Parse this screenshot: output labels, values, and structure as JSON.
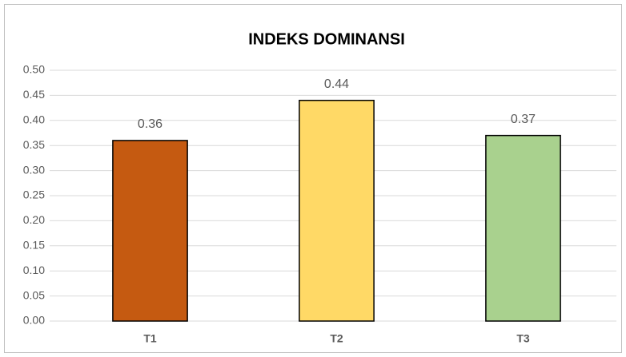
{
  "chart_data": {
    "type": "bar",
    "title": "INDEKS DOMINANSI",
    "categories": [
      "T1",
      "T2",
      "T3"
    ],
    "values": [
      0.36,
      0.44,
      0.37
    ],
    "colors": [
      "#c55a11",
      "#ffd966",
      "#a9d18e"
    ],
    "ylim": [
      0,
      0.5
    ],
    "yticks": [
      {
        "value": 0,
        "label": "0.00"
      },
      0.05,
      {
        "value": 0.1,
        "label": "0.10"
      },
      0.15,
      {
        "value": 0.2,
        "label": "0.20"
      },
      0.25,
      {
        "value": 0.3,
        "label": "0.30"
      },
      0.35,
      {
        "value": 0.4,
        "label": "0.40"
      },
      0.45,
      {
        "value": 0.5,
        "label": "0.50"
      }
    ],
    "grid": true
  }
}
